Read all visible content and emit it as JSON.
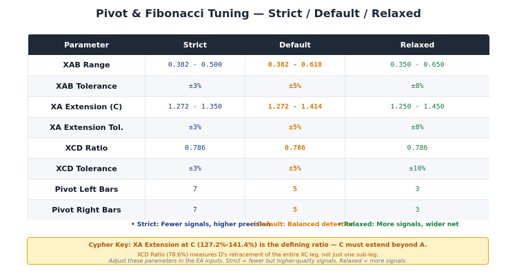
{
  "title": "Pivot & Fibonacci Tuning — Strict / Default / Relaxed",
  "table": {
    "headers": [
      "Parameter",
      "Strict",
      "Default",
      "Relaxed"
    ],
    "rows": [
      {
        "parameter": "XAB Range",
        "strict": "0.382 - 0.500",
        "default": "0.382 - 0.618",
        "relaxed": "0.350 - 0.650"
      },
      {
        "parameter": "XAB Tolerance",
        "strict": "±3%",
        "default": "±5%",
        "relaxed": "±8%"
      },
      {
        "parameter": "XA Extension (C)",
        "strict": "1.272 - 1.350",
        "default": "1.272 - 1.414",
        "relaxed": "1.250 - 1.450"
      },
      {
        "parameter": "XA Extension Tol.",
        "strict": "±3%",
        "default": "±5%",
        "relaxed": "±8%"
      },
      {
        "parameter": "XCD Ratio",
        "strict": "0.786",
        "default": "0.786",
        "relaxed": "0.786"
      },
      {
        "parameter": "XCD Tolerance",
        "strict": "±3%",
        "default": "±5%",
        "relaxed": "±10%"
      },
      {
        "parameter": "Pivot Left Bars",
        "strict": "7",
        "default": "5",
        "relaxed": "3"
      },
      {
        "parameter": "Pivot Right Bars",
        "strict": "7",
        "default": "5",
        "relaxed": "3"
      }
    ]
  },
  "legend": {
    "strict": "• Strict: Fewer signals, higher precision",
    "default": "• Default: Balanced detection",
    "relaxed": "• Relaxed: More signals, wider net"
  },
  "key_box": {
    "line1": "Cypher Key: XA Extension at C (127.2%-141.4%) is the defining ratio — C must extend beyond A.",
    "line2": "XCD Ratio (78.6%) measures D's retracement of the entire XC leg, not just one sub-leg.",
    "line3": "Adjust these parameters in the EA inputs. Strict = fewer but higher-quality signals, Relaxed = more signals."
  },
  "colors": {
    "header_bg": "#1f2937",
    "strict": "#1e3a8a",
    "default": "#d97706",
    "relaxed": "#15803d",
    "key_bg": "#fef3c7",
    "key_border": "#f59e0b"
  }
}
